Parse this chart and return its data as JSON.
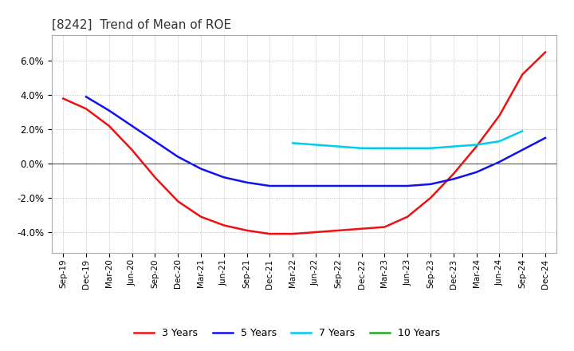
{
  "title": "[8242]  Trend of Mean of ROE",
  "title_fontsize": 11,
  "ylim": [
    -0.052,
    0.075
  ],
  "yticks": [
    -0.04,
    -0.02,
    0.0,
    0.02,
    0.04,
    0.06
  ],
  "background_color": "#ffffff",
  "grid_color": "#b0b0b0",
  "x_labels": [
    "Sep-19",
    "Dec-19",
    "Mar-20",
    "Jun-20",
    "Sep-20",
    "Dec-20",
    "Mar-21",
    "Jun-21",
    "Sep-21",
    "Dec-21",
    "Mar-22",
    "Jun-22",
    "Sep-22",
    "Dec-22",
    "Mar-23",
    "Jun-23",
    "Sep-23",
    "Dec-23",
    "Mar-24",
    "Jun-24",
    "Sep-24",
    "Dec-24"
  ],
  "series": {
    "3 Years": {
      "color": "#ee1111",
      "values_x": [
        0,
        1,
        2,
        3,
        4,
        5,
        6,
        7,
        8,
        9,
        10,
        11,
        12,
        13,
        14,
        15,
        16,
        17,
        18,
        19,
        20,
        21
      ],
      "values_y": [
        0.038,
        0.032,
        0.022,
        0.008,
        -0.008,
        -0.022,
        -0.031,
        -0.036,
        -0.039,
        -0.041,
        -0.041,
        -0.04,
        -0.039,
        -0.038,
        -0.037,
        -0.031,
        -0.02,
        -0.006,
        0.01,
        0.028,
        0.052,
        0.065
      ]
    },
    "5 Years": {
      "color": "#1111ee",
      "values_x": [
        0,
        1,
        2,
        3,
        4,
        5,
        6,
        7,
        8,
        9,
        10,
        11,
        12,
        13,
        14,
        15,
        16,
        17,
        18,
        19,
        20,
        21
      ],
      "values_y": [
        null,
        null,
        null,
        null,
        null,
        null,
        null,
        null,
        null,
        null,
        null,
        null,
        null,
        null,
        null,
        null,
        null,
        null,
        null,
        null,
        null,
        null
      ]
    },
    "5 Years_real": {
      "color": "#1111ee",
      "values_x": [
        0,
        1,
        2,
        3,
        4,
        5,
        6,
        7,
        8,
        9,
        10,
        11,
        12,
        13,
        14,
        15,
        16,
        17,
        18,
        19,
        20,
        21
      ],
      "values_y": [
        null,
        0.039,
        0.031,
        0.022,
        0.013,
        0.004,
        -0.003,
        -0.008,
        -0.011,
        -0.013,
        -0.013,
        -0.013,
        -0.013,
        -0.013,
        -0.013,
        -0.013,
        -0.012,
        -0.009,
        -0.005,
        0.001,
        0.008,
        0.015
      ]
    },
    "7 Years": {
      "color": "#00ccee",
      "values_x": [
        10,
        11,
        12,
        13,
        14,
        15,
        16,
        17,
        18,
        19,
        20
      ],
      "values_y": [
        0.012,
        0.011,
        0.01,
        0.009,
        0.009,
        0.009,
        0.009,
        0.01,
        0.011,
        0.013,
        0.019
      ]
    },
    "10 Years": {
      "color": "#22aa22",
      "values_x": [],
      "values_y": []
    }
  },
  "legend_labels": [
    "3 Years",
    "5 Years",
    "7 Years",
    "10 Years"
  ],
  "legend_colors": [
    "#ee1111",
    "#1111ee",
    "#00ccee",
    "#22aa22"
  ]
}
